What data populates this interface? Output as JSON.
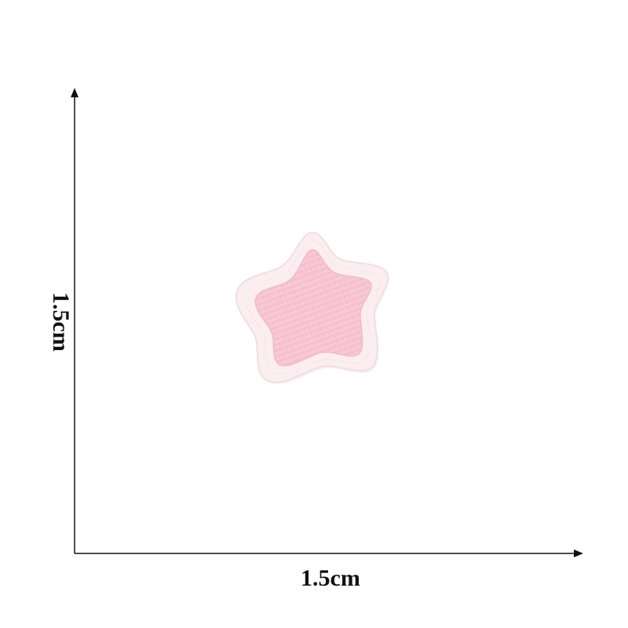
{
  "dimensions": {
    "width_label": "1.5cm",
    "height_label": "1.5cm"
  },
  "patch": {
    "shape": "star-icon",
    "fill_color": "#f7c6d2",
    "border_color": "#fbeef1"
  },
  "axes_color": "#111111",
  "background_color": "#ffffff"
}
